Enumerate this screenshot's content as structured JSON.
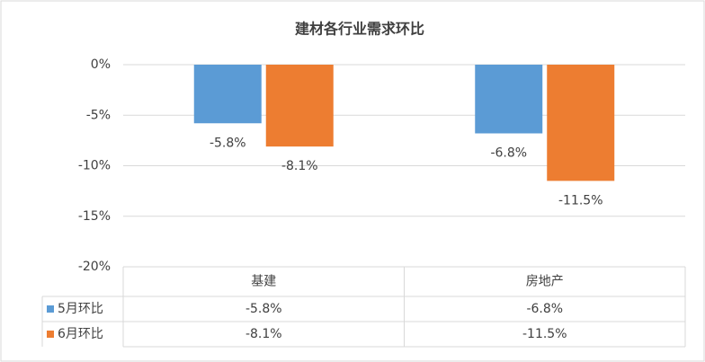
{
  "chart_data": {
    "type": "bar",
    "title": "建材各行业需求环比",
    "categories": [
      "基建",
      "房地产"
    ],
    "series": [
      {
        "name": "5月环比",
        "color": "#5b9bd5",
        "values": [
          -5.8,
          -6.8
        ],
        "value_labels": [
          "-5.8%",
          "-6.8%"
        ]
      },
      {
        "name": "6月环比",
        "color": "#ed7d31",
        "values": [
          -8.1,
          -11.5
        ],
        "value_labels": [
          "-8.1%",
          "-11.5%"
        ]
      }
    ],
    "ylim": [
      -20,
      0
    ],
    "yticks": [
      {
        "value": 0,
        "label": "0%"
      },
      {
        "value": -5,
        "label": "-5%"
      },
      {
        "value": -10,
        "label": "-10%"
      },
      {
        "value": -15,
        "label": "-15%"
      },
      {
        "value": -20,
        "label": "-20%"
      }
    ],
    "grid": true,
    "data_table": true
  }
}
